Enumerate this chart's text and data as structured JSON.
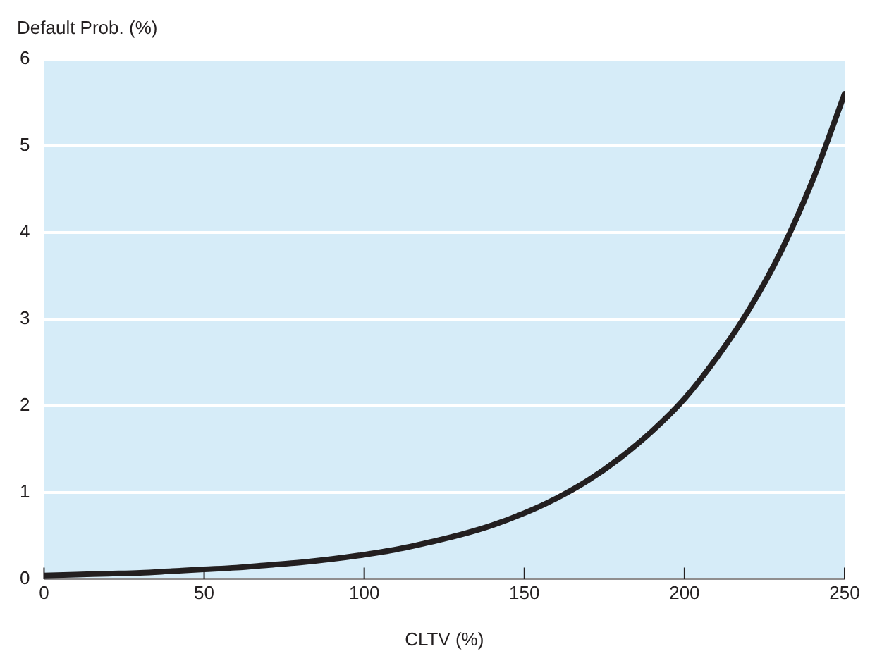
{
  "chart_data": {
    "type": "line",
    "xlabel": "CLTV (%)",
    "ylabel": "Default Prob. (%)",
    "x": [
      0,
      10,
      20,
      30,
      40,
      50,
      60,
      70,
      80,
      90,
      100,
      110,
      120,
      130,
      140,
      150,
      160,
      170,
      180,
      190,
      200,
      210,
      220,
      230,
      240,
      250
    ],
    "series": [
      {
        "color": "#231f20",
        "values": [
          0.04,
          0.05,
          0.06,
          0.07,
          0.09,
          0.11,
          0.13,
          0.16,
          0.19,
          0.23,
          0.28,
          0.34,
          0.42,
          0.51,
          0.62,
          0.76,
          0.93,
          1.14,
          1.4,
          1.71,
          2.08,
          2.55,
          3.1,
          3.77,
          4.6,
          5.6
        ]
      }
    ],
    "xlim": [
      0,
      250
    ],
    "xticks": [
      0,
      50,
      100,
      150,
      200,
      250
    ],
    "ylim": [
      0,
      6
    ],
    "yticks": [
      0,
      1,
      2,
      3,
      4,
      5,
      6
    ],
    "grid": "y",
    "legend": false,
    "marker": "none",
    "line_style": "solid"
  }
}
